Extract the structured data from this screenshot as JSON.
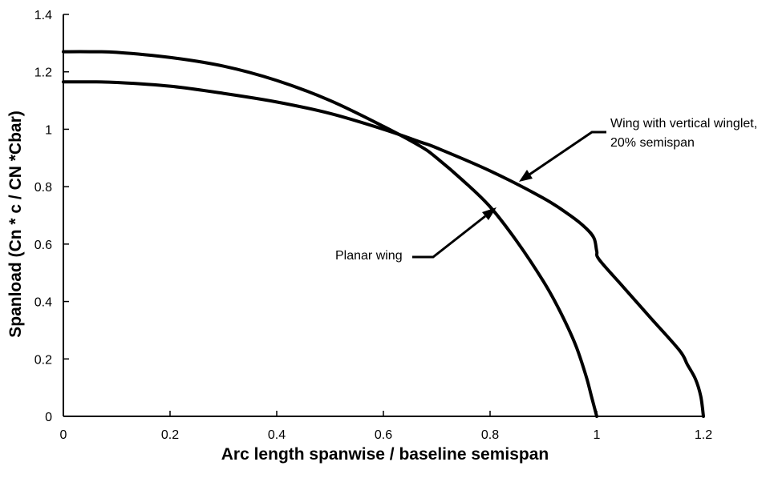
{
  "chart_data": {
    "type": "line",
    "title": "",
    "xlabel": "Arc length spanwise / baseline semispan",
    "ylabel": "Spanload (Cn * c / CN *Cbar)",
    "xlim": [
      0,
      1.2
    ],
    "ylim": [
      0,
      1.4
    ],
    "xticks": [
      0,
      0.2,
      0.4,
      0.6,
      0.8,
      1,
      1.2
    ],
    "xtick_labels": [
      "0",
      "0.2",
      "0.4",
      "0.6",
      "0.8",
      "1",
      "1.2"
    ],
    "yticks": [
      0,
      0.2,
      0.4,
      0.6,
      0.8,
      1,
      1.2,
      1.4
    ],
    "ytick_labels": [
      "0",
      "0.2",
      "0.4",
      "0.6",
      "0.8",
      "1",
      "1.2",
      "1.4"
    ],
    "grid": false,
    "series": [
      {
        "id": "planar",
        "x": [
          0,
          0.05,
          0.1,
          0.2,
          0.3,
          0.4,
          0.5,
          0.6,
          0.67,
          0.7,
          0.75,
          0.8,
          0.85,
          0.9,
          0.93,
          0.96,
          0.98,
          0.99,
          1.0
        ],
        "y": [
          1.27,
          1.27,
          1.268,
          1.25,
          1.22,
          1.17,
          1.1,
          1.01,
          0.94,
          0.9,
          0.82,
          0.73,
          0.61,
          0.47,
          0.37,
          0.25,
          0.14,
          0.07,
          0
        ]
      },
      {
        "id": "winglet",
        "x": [
          0,
          0.05,
          0.1,
          0.2,
          0.3,
          0.4,
          0.5,
          0.6,
          0.67,
          0.7,
          0.8,
          0.9,
          0.95,
          0.98,
          0.995,
          1.0,
          1.005,
          1.05,
          1.1,
          1.155,
          1.17,
          1.185,
          1.195,
          1.2
        ],
        "y": [
          1.165,
          1.165,
          1.163,
          1.15,
          1.125,
          1.095,
          1.055,
          1.0,
          0.955,
          0.935,
          0.855,
          0.76,
          0.7,
          0.655,
          0.62,
          0.575,
          0.545,
          0.45,
          0.345,
          0.23,
          0.18,
          0.13,
          0.07,
          0
        ]
      }
    ],
    "annotations": [
      {
        "id": "winglet_label",
        "lines": [
          "Wing with vertical winglet,",
          "20% semispan"
        ],
        "points_to": "winglet"
      },
      {
        "id": "planar_label",
        "lines": [
          "Planar wing"
        ],
        "points_to": "planar"
      }
    ]
  }
}
